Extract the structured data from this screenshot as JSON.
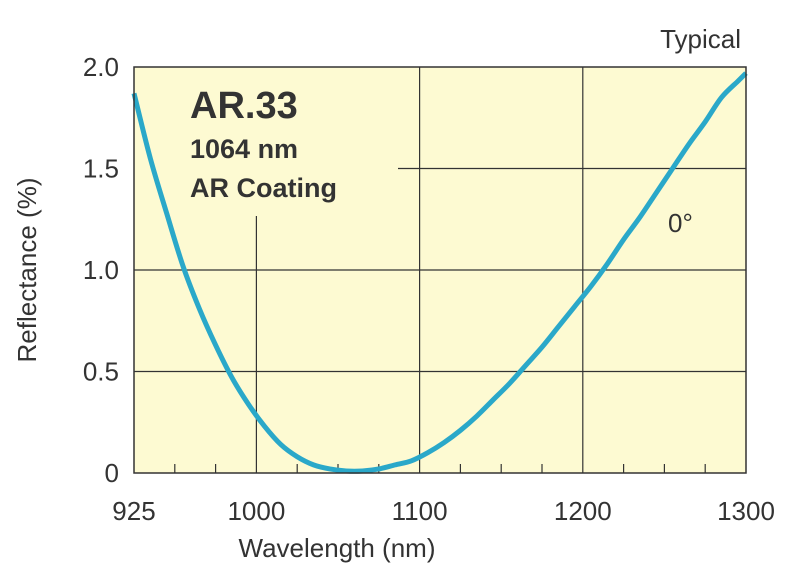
{
  "chart_data": {
    "type": "line",
    "title": "AR.33",
    "subtitle_lines": [
      "1064 nm",
      "AR Coating"
    ],
    "corner_label": "Typical",
    "xlabel": "Wavelength (nm)",
    "ylabel": "Reflectance (%)",
    "xlim": [
      925,
      1300
    ],
    "ylim": [
      0,
      2.0
    ],
    "x_ticks": [
      925,
      1000,
      1100,
      1200,
      1300
    ],
    "x_tick_labels": [
      "925",
      "1000",
      "1100",
      "1200",
      "1300"
    ],
    "y_ticks": [
      0,
      0.5,
      1.0,
      1.5,
      2.0
    ],
    "y_tick_labels": [
      "0",
      "0.5",
      "1.0",
      "1.5",
      "2.0"
    ],
    "grid": true,
    "series": [
      {
        "name": "0°",
        "color": "#2aa8c9",
        "x": [
          925,
          935,
          945,
          955,
          965,
          975,
          985,
          995,
          1005,
          1015,
          1025,
          1035,
          1045,
          1055,
          1065,
          1075,
          1085,
          1095,
          1105,
          1115,
          1125,
          1135,
          1145,
          1155,
          1165,
          1175,
          1185,
          1195,
          1205,
          1215,
          1225,
          1235,
          1245,
          1255,
          1265,
          1275,
          1285,
          1295,
          1300
        ],
        "y": [
          1.87,
          1.55,
          1.28,
          1.02,
          0.81,
          0.63,
          0.47,
          0.34,
          0.23,
          0.14,
          0.08,
          0.04,
          0.02,
          0.01,
          0.01,
          0.02,
          0.04,
          0.06,
          0.1,
          0.15,
          0.21,
          0.28,
          0.36,
          0.44,
          0.53,
          0.62,
          0.72,
          0.82,
          0.92,
          1.03,
          1.15,
          1.26,
          1.38,
          1.5,
          1.62,
          1.73,
          1.85,
          1.93,
          1.97
        ]
      }
    ],
    "colors": {
      "plot_background": "#fdfad2",
      "grid": "#333333",
      "line": "#2aa8c9"
    }
  }
}
